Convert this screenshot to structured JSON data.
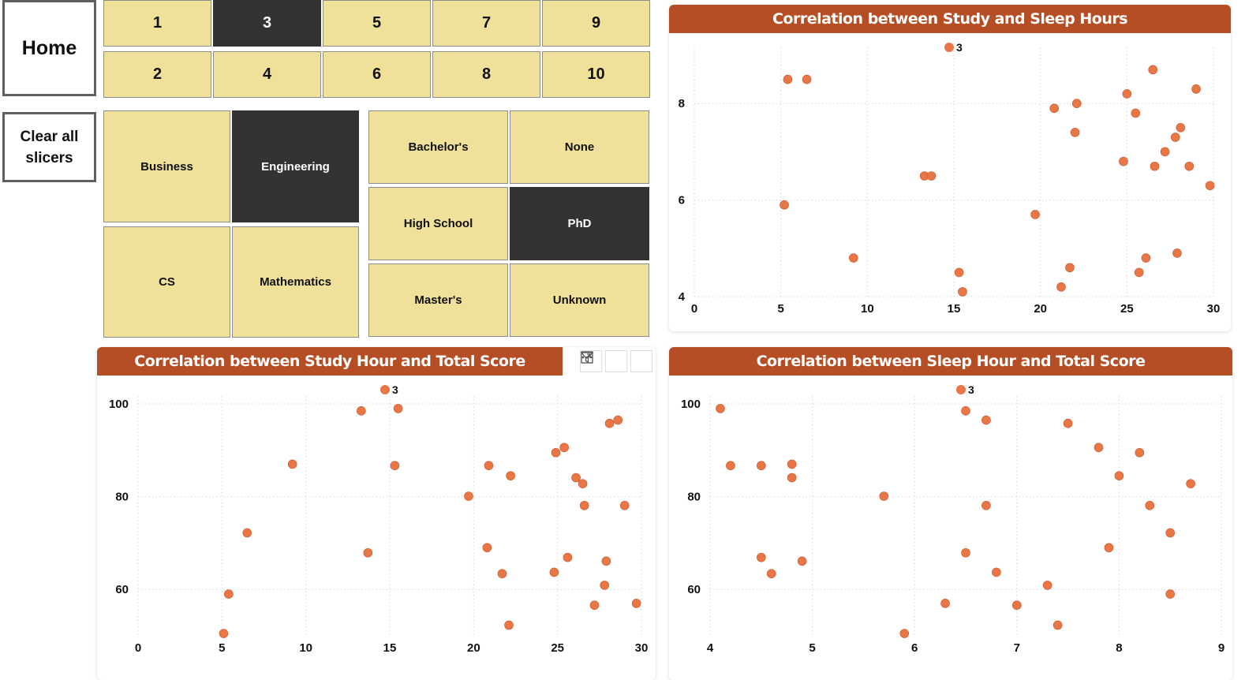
{
  "nav": {
    "home_label": "Home",
    "clear_label": "Clear all slicers"
  },
  "number_slicer": {
    "items": [
      {
        "label": "1",
        "selected": false
      },
      {
        "label": "3",
        "selected": true
      },
      {
        "label": "5",
        "selected": false
      },
      {
        "label": "7",
        "selected": false
      },
      {
        "label": "9",
        "selected": false
      },
      {
        "label": "2",
        "selected": false
      },
      {
        "label": "4",
        "selected": false
      },
      {
        "label": "6",
        "selected": false
      },
      {
        "label": "8",
        "selected": false
      },
      {
        "label": "10",
        "selected": false
      }
    ]
  },
  "major_slicer": {
    "items": [
      {
        "label": "Business",
        "selected": false
      },
      {
        "label": "Engineering",
        "selected": true
      },
      {
        "label": "CS",
        "selected": false
      },
      {
        "label": "Mathematics",
        "selected": false
      }
    ]
  },
  "education_slicer": {
    "items": [
      {
        "label": "Bachelor's",
        "selected": false
      },
      {
        "label": "None",
        "selected": false
      },
      {
        "label": "High School",
        "selected": false
      },
      {
        "label": "PhD",
        "selected": true
      },
      {
        "label": "Master's",
        "selected": false
      },
      {
        "label": "Unknown",
        "selected": false
      }
    ]
  },
  "colors": {
    "header": "#b54e24",
    "point": "#e97746",
    "point_stroke": "#c8552a",
    "tile": "#efe09a",
    "tile_selected": "#333333"
  },
  "toolbar_icons": [
    "filter-icon",
    "focus-mode-icon",
    "more-options-icon"
  ],
  "chart_data": [
    {
      "type": "scatter",
      "title": "Correlation between Study and Sleep Hours",
      "xlabel": "",
      "ylabel": "",
      "legend": "3",
      "legend_position": "top-center",
      "grid": true,
      "xlim": [
        0,
        30
      ],
      "ylim": [
        4,
        9
      ],
      "xticks": [
        0,
        5,
        10,
        15,
        20,
        25,
        30
      ],
      "yticks": [
        4,
        6,
        8
      ],
      "points": [
        [
          5.4,
          8.5
        ],
        [
          6.5,
          8.5
        ],
        [
          5.2,
          5.9
        ],
        [
          9.2,
          4.8
        ],
        [
          13.3,
          6.5
        ],
        [
          13.7,
          6.5
        ],
        [
          15.3,
          4.5
        ],
        [
          15.5,
          4.1
        ],
        [
          19.7,
          5.7
        ],
        [
          20.8,
          7.9
        ],
        [
          21.2,
          4.2
        ],
        [
          21.7,
          4.6
        ],
        [
          22.0,
          7.4
        ],
        [
          22.1,
          8.0
        ],
        [
          24.8,
          6.8
        ],
        [
          25.0,
          8.2
        ],
        [
          25.5,
          7.8
        ],
        [
          25.7,
          4.5
        ],
        [
          26.1,
          4.8
        ],
        [
          26.5,
          8.7
        ],
        [
          26.6,
          6.7
        ],
        [
          27.2,
          7.0
        ],
        [
          27.8,
          7.3
        ],
        [
          27.9,
          4.9
        ],
        [
          28.1,
          7.5
        ],
        [
          28.6,
          6.7
        ],
        [
          29.0,
          8.3
        ],
        [
          29.8,
          6.3
        ]
      ]
    },
    {
      "type": "scatter",
      "title": "Correlation between Study Hour and Total Score",
      "xlabel": "",
      "ylabel": "",
      "legend": "3",
      "legend_position": "top-center",
      "grid": true,
      "xlim": [
        0,
        30
      ],
      "ylim": [
        50,
        100
      ],
      "xticks": [
        0,
        5,
        10,
        15,
        20,
        25,
        30
      ],
      "yticks": [
        60,
        80,
        100
      ],
      "points": [
        [
          5.1,
          50.5
        ],
        [
          5.4,
          59
        ],
        [
          6.5,
          72.2
        ],
        [
          9.2,
          87
        ],
        [
          13.3,
          98.5
        ],
        [
          13.7,
          67.9
        ],
        [
          15.3,
          86.7
        ],
        [
          15.5,
          99
        ],
        [
          19.7,
          80.1
        ],
        [
          20.8,
          69
        ],
        [
          20.9,
          86.7
        ],
        [
          21.7,
          63.4
        ],
        [
          22.1,
          52.3
        ],
        [
          22.2,
          84.5
        ],
        [
          24.8,
          63.7
        ],
        [
          24.9,
          89.5
        ],
        [
          25.4,
          90.6
        ],
        [
          25.6,
          66.9
        ],
        [
          26.1,
          84.1
        ],
        [
          26.5,
          82.8
        ],
        [
          26.6,
          78.1
        ],
        [
          27.2,
          56.6
        ],
        [
          27.8,
          60.9
        ],
        [
          27.9,
          66.1
        ],
        [
          28.1,
          95.8
        ],
        [
          28.6,
          96.5
        ],
        [
          29.0,
          78.1
        ],
        [
          29.7,
          57
        ]
      ]
    },
    {
      "type": "scatter",
      "title": "Correlation between Sleep Hour and Total Score",
      "xlabel": "",
      "ylabel": "",
      "legend": "3",
      "legend_position": "top-center",
      "grid": true,
      "xlim": [
        4,
        9
      ],
      "ylim": [
        50,
        100
      ],
      "xticks": [
        4,
        5,
        6,
        7,
        8,
        9
      ],
      "yticks": [
        60,
        80,
        100
      ],
      "points": [
        [
          4.1,
          99
        ],
        [
          4.2,
          86.7
        ],
        [
          4.5,
          86.7
        ],
        [
          4.5,
          66.9
        ],
        [
          4.6,
          63.4
        ],
        [
          4.8,
          87
        ],
        [
          4.8,
          84.1
        ],
        [
          4.9,
          66.1
        ],
        [
          5.7,
          80.1
        ],
        [
          5.9,
          50.5
        ],
        [
          6.3,
          57
        ],
        [
          6.5,
          98.5
        ],
        [
          6.5,
          67.9
        ],
        [
          6.7,
          96.5
        ],
        [
          6.7,
          78.1
        ],
        [
          6.8,
          63.7
        ],
        [
          7.0,
          56.6
        ],
        [
          7.3,
          60.9
        ],
        [
          7.4,
          52.3
        ],
        [
          7.5,
          95.8
        ],
        [
          7.8,
          90.6
        ],
        [
          7.9,
          69
        ],
        [
          8.0,
          84.5
        ],
        [
          8.2,
          89.5
        ],
        [
          8.3,
          78.1
        ],
        [
          8.5,
          72.2
        ],
        [
          8.5,
          59
        ],
        [
          8.7,
          82.8
        ]
      ]
    }
  ]
}
